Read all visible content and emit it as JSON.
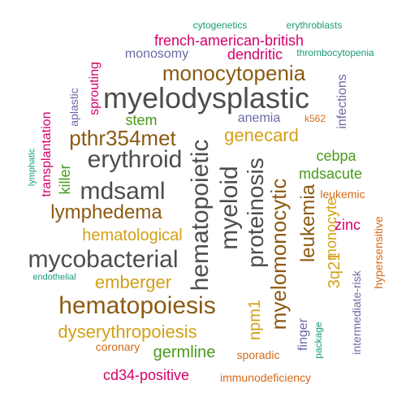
{
  "colors": {
    "dark_gray": "#4d4d4d",
    "brown": "#8c5a12",
    "gold": "#d4a017",
    "magenta": "#d4006a",
    "green": "#4a9a1a",
    "teal": "#1a9a78",
    "slate": "#6a6aa8",
    "orange": "#d46a1a"
  },
  "words": [
    "myelodysplastic",
    "hematopoietic",
    "myeloid",
    "proteinosis",
    "mycobacterial",
    "hematopoiesis",
    "erythroid",
    "mdsaml",
    "monocytopenia",
    "pthr354met",
    "lymphedema",
    "myelomonocytic",
    "leukemia",
    "dyserythropoiesis",
    "genecard",
    "hematological",
    "emberger",
    "french-american-british",
    "dendritic",
    "mdsacute",
    "monocyte",
    "germline",
    "cebpa",
    "npm1",
    "3q21",
    "stem",
    "killer",
    "zinc",
    "transplantation",
    "sprouting",
    "cd34-positive",
    "anemia",
    "finger",
    "infections",
    "monosomy",
    "aplastic",
    "intermediate-risk",
    "hypersensitive",
    "leukemic",
    "sporadic",
    "coronary",
    "immunodeficiency",
    "cytogenetics",
    "erythroblasts",
    "thrombocytopenia",
    "k562",
    "endothelial",
    "lymphatic",
    "package"
  ]
}
